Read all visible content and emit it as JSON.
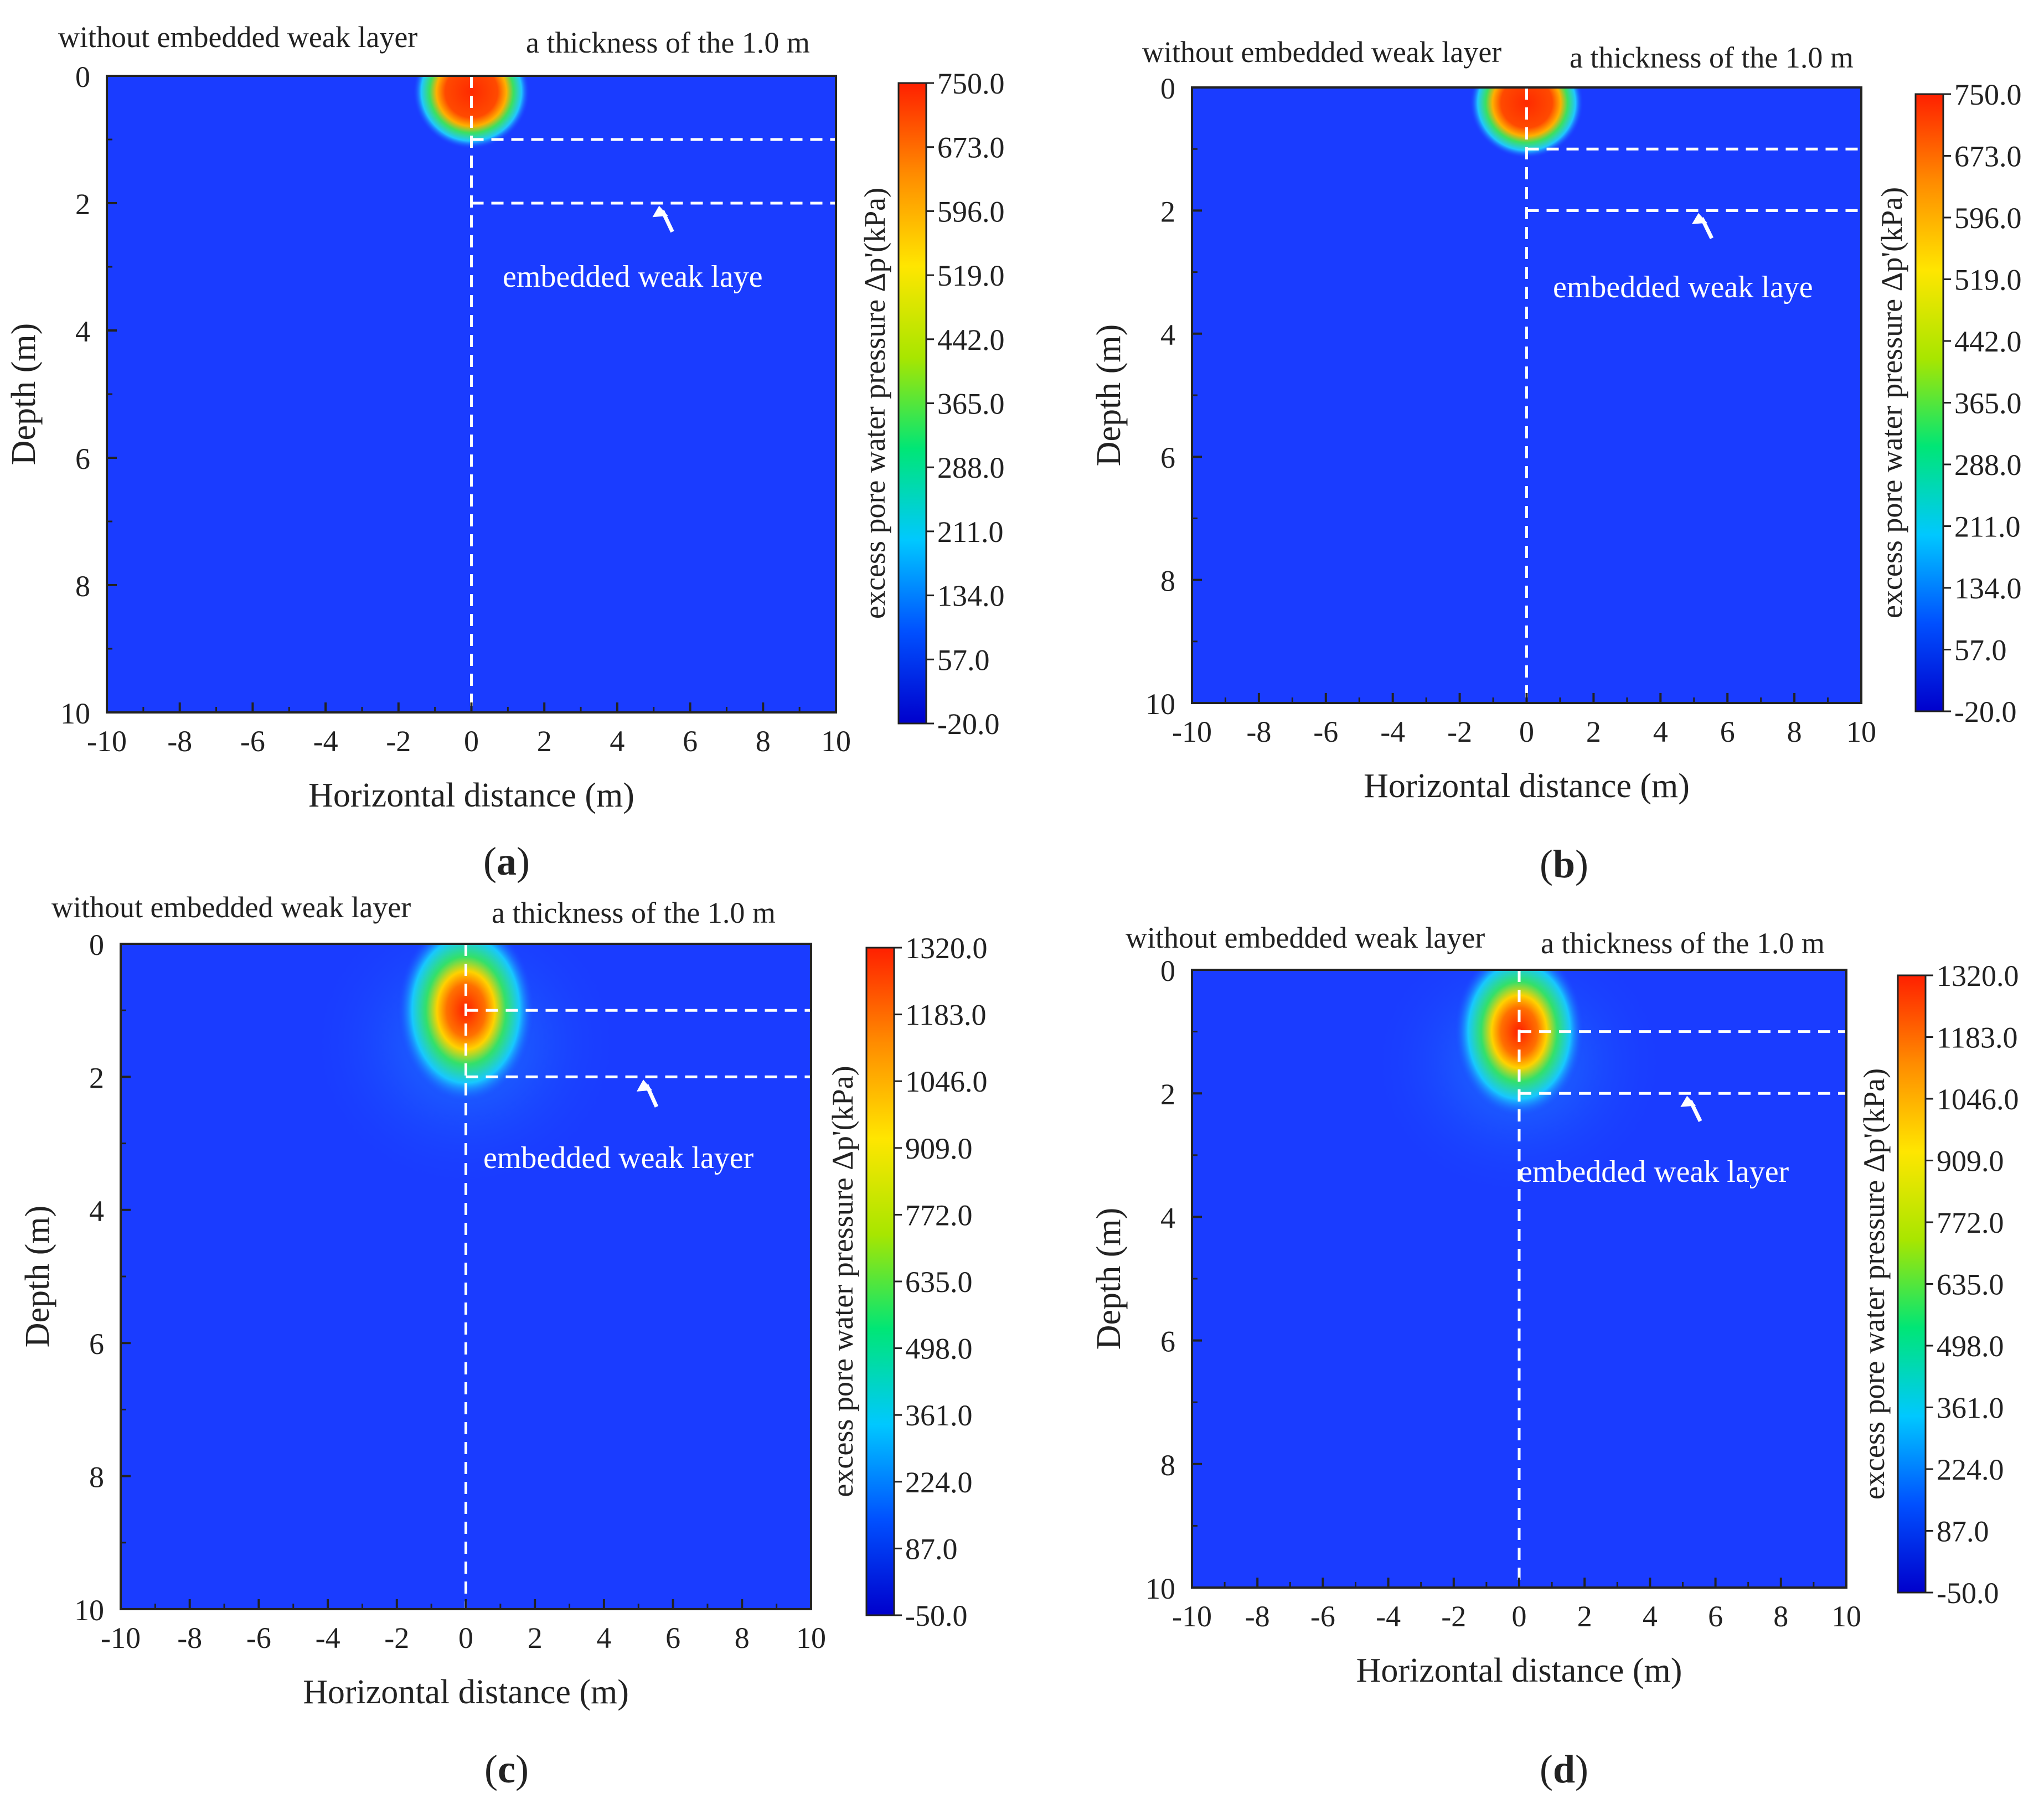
{
  "figure": {
    "panels": [
      {
        "panel_label": "(a)",
        "label_letter": "a",
        "chart_data": {
          "type": "heatmap",
          "title_left": "without embedded weak layer",
          "title_right": "a thickness of the 1.0 m",
          "xlabel": "Horizontal distance  (m)",
          "ylabel": "Depth (m)",
          "xlim": [
            -10,
            10
          ],
          "ylim": [
            0,
            10
          ],
          "x_ticks": [
            -10,
            -8,
            -6,
            -4,
            -2,
            0,
            2,
            4,
            6,
            8,
            10
          ],
          "y_ticks": [
            0,
            2,
            4,
            6,
            8,
            10
          ],
          "colorbar_label": "excess pore water pressure Δp'(kPa)",
          "colorbar_ticks": [
            "750.0",
            "673.0",
            "596.0",
            "519.0",
            "442.0",
            "365.0",
            "288.0",
            "211.0",
            "134.0",
            "57.0",
            "-20.0"
          ],
          "annotation": "embedded weak laye",
          "weak_layer_depths": [
            1,
            2
          ],
          "divider_x": 0,
          "hotspot": {
            "x": 0,
            "depth": 0.25,
            "peak": 750,
            "extent_x": 1.6,
            "extent_depth": 0.9
          }
        }
      },
      {
        "panel_label": "(b)",
        "label_letter": "b",
        "chart_data": {
          "type": "heatmap",
          "title_left": "without embedded weak layer",
          "title_right": "a thickness of the 1.0 m",
          "xlabel": "Horizontal distance  (m)",
          "ylabel": "Depth (m)",
          "xlim": [
            -10,
            10
          ],
          "ylim": [
            0,
            10
          ],
          "x_ticks": [
            -10,
            -8,
            -6,
            -4,
            -2,
            0,
            2,
            4,
            6,
            8,
            10
          ],
          "y_ticks": [
            0,
            2,
            4,
            6,
            8,
            10
          ],
          "colorbar_label": "excess pore water pressure Δp'(kPa)",
          "colorbar_ticks": [
            "750.0",
            "673.0",
            "596.0",
            "519.0",
            "442.0",
            "365.0",
            "288.0",
            "211.0",
            "134.0",
            "57.0",
            "-20.0"
          ],
          "annotation": "embedded weak laye",
          "weak_layer_depths": [
            1,
            2
          ],
          "divider_x": 0,
          "hotspot": {
            "x": 0,
            "depth": 0.25,
            "peak": 750,
            "extent_x": 1.7,
            "extent_depth": 0.9
          }
        }
      },
      {
        "panel_label": "(c)",
        "label_letter": "c",
        "chart_data": {
          "type": "heatmap",
          "title_left": "without embedded weak layer",
          "title_right": "a thickness of the 1.0 m",
          "xlabel": "Horizontal distance  (m)",
          "ylabel": "Depth (m)",
          "xlim": [
            -10,
            10
          ],
          "ylim": [
            0,
            10
          ],
          "x_ticks": [
            -10,
            -8,
            -6,
            -4,
            -2,
            0,
            2,
            4,
            6,
            8,
            10
          ],
          "y_ticks": [
            0,
            2,
            4,
            6,
            8,
            10
          ],
          "colorbar_label": "excess pore water pressure Δp'(kPa)",
          "colorbar_ticks": [
            "1320.0",
            "1183.0",
            "1046.0",
            "909.0",
            "772.0",
            "635.0",
            "498.0",
            "361.0",
            "224.0",
            "87.0",
            "-50.0"
          ],
          "annotation": "embedded weak layer",
          "weak_layer_depths": [
            1,
            2
          ],
          "divider_x": 0,
          "hotspot": {
            "x": 0,
            "depth": 1.0,
            "peak": 1320,
            "extent_x": 2.0,
            "extent_depth": 1.4
          }
        }
      },
      {
        "panel_label": "(d)",
        "label_letter": "d",
        "chart_data": {
          "type": "heatmap",
          "title_left": "without embedded weak layer",
          "title_right": "a thickness of the 1.0 m",
          "xlabel": "Horizontal distance  (m)",
          "ylabel": "Depth (m)",
          "xlim": [
            -10,
            10
          ],
          "ylim": [
            0,
            10
          ],
          "x_ticks": [
            -10,
            -8,
            -6,
            -4,
            -2,
            0,
            2,
            4,
            6,
            8,
            10
          ],
          "y_ticks": [
            0,
            2,
            4,
            6,
            8,
            10
          ],
          "colorbar_label": "excess pore water pressure Δp'(kPa)",
          "colorbar_ticks": [
            "1320.0",
            "1183.0",
            "1046.0",
            "909.0",
            "772.0",
            "635.0",
            "498.0",
            "361.0",
            "224.0",
            "87.0",
            "-50.0"
          ],
          "annotation": "embedded weak layer",
          "weak_layer_depths": [
            1,
            2
          ],
          "divider_x": 0,
          "hotspot": {
            "x": 0,
            "depth": 1.0,
            "peak": 1320,
            "extent_x": 2.0,
            "extent_depth": 1.4
          }
        }
      }
    ],
    "colors": {
      "background_field": "#1a3cff",
      "jet_stops": [
        "#0000cc",
        "#0050ff",
        "#00c8ff",
        "#00e676",
        "#a8e600",
        "#ffe600",
        "#ff8c00",
        "#ff2000"
      ],
      "dashed_line": "#ffffff",
      "text": "#222222"
    }
  }
}
